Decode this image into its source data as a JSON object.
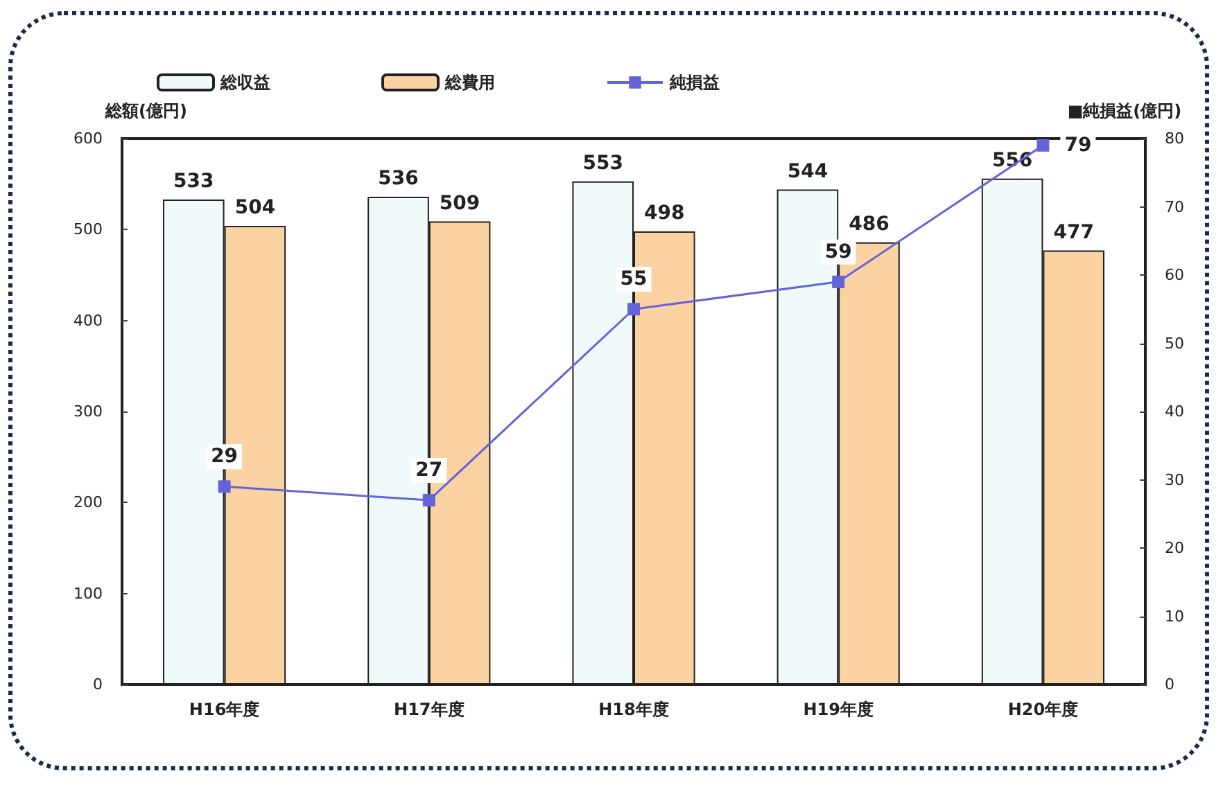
{
  "chart_data": {
    "type": "bar",
    "categories": [
      "H16年度",
      "H17年度",
      "H18年度",
      "H19年度",
      "H20年度"
    ],
    "series": [
      {
        "name": "総収益",
        "color": "#f0fafa",
        "values": [
          533,
          536,
          553,
          544,
          556
        ]
      },
      {
        "name": "総費用",
        "color": "#fbd3a3",
        "values": [
          504,
          509,
          498,
          486,
          477
        ]
      },
      {
        "name": "純損益",
        "type": "line",
        "axis": "y2",
        "color": "#6464d8",
        "values": [
          29,
          27,
          55,
          59,
          79
        ]
      }
    ],
    "ylabel": "総額(億円)",
    "y2label": "■純損益(億円)",
    "ylim": [
      0,
      600
    ],
    "yticks": [
      0,
      100,
      200,
      300,
      400,
      500,
      600
    ],
    "y2lim": [
      0,
      80
    ],
    "y2ticks": [
      0,
      10,
      20,
      30,
      40,
      50,
      60,
      70,
      80
    ],
    "grid": false,
    "legend": "top",
    "data_labels": true,
    "marker": "square",
    "line_style": "solid"
  }
}
